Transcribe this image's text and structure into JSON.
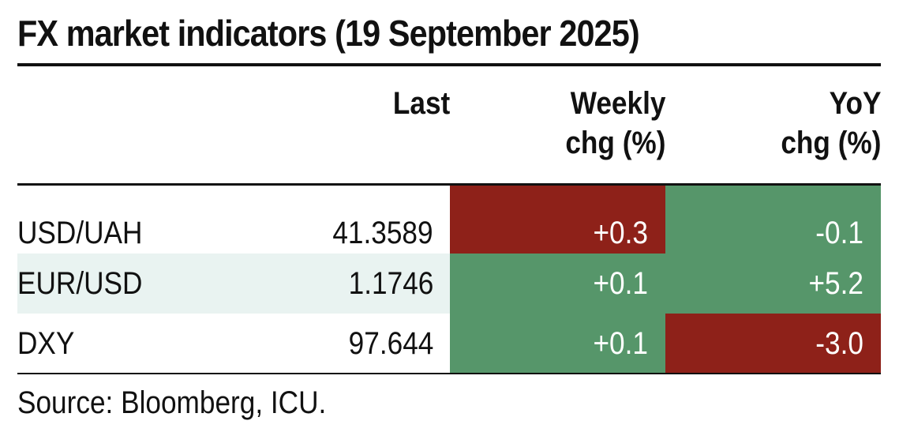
{
  "title": "FX market indicators (19 September 2025)",
  "source": "Source: Bloomberg, ICU.",
  "colors": {
    "positive_fill": "#56966a",
    "negative_fill": "#8e2119",
    "alt_row_fill": "#e9f3f1",
    "rule": "#111111"
  },
  "chart_data": {
    "type": "table",
    "title": "FX market indicators (19 September 2025)",
    "columns": [
      {
        "key": "pair",
        "label_lines": [
          "",
          ""
        ]
      },
      {
        "key": "last",
        "label_lines": [
          "Last",
          ""
        ]
      },
      {
        "key": "weekly",
        "label_lines": [
          "Weekly",
          "chg (%)"
        ]
      },
      {
        "key": "yoy",
        "label_lines": [
          "YoY",
          "chg (%)"
        ]
      }
    ],
    "rows": [
      {
        "pair": "USD/UAH",
        "last": "41.3589",
        "weekly": "+0.3",
        "yoy": "-0.1",
        "weekly_color": "negative",
        "yoy_color": "positive",
        "alt": false
      },
      {
        "pair": "EUR/USD",
        "last": "1.1746",
        "weekly": "+0.1",
        "yoy": "+5.2",
        "weekly_color": "positive",
        "yoy_color": "positive",
        "alt": true
      },
      {
        "pair": "DXY",
        "last": "97.644",
        "weekly": "+0.1",
        "yoy": "-3.0",
        "weekly_color": "positive",
        "yoy_color": "negative",
        "alt": false
      }
    ]
  }
}
